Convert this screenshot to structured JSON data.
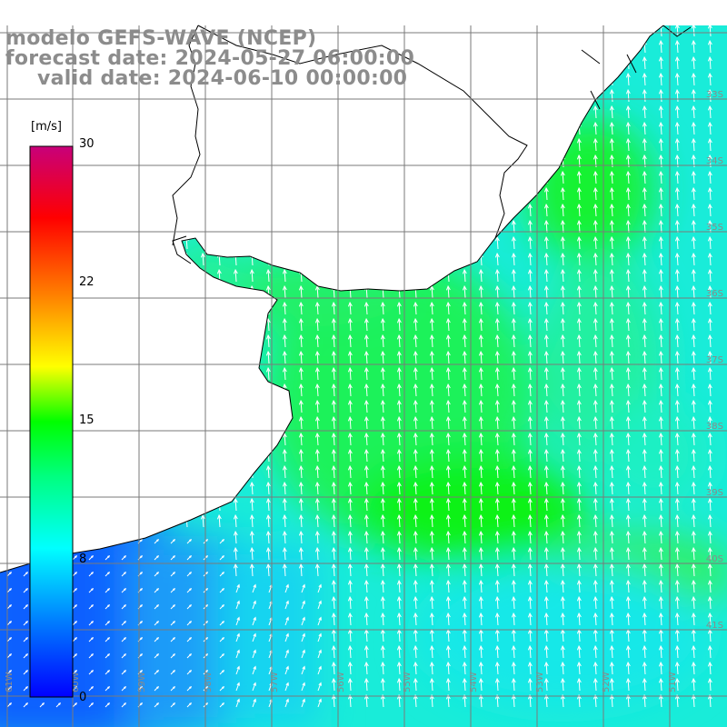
{
  "title": {
    "line1": "modelo GEFS-WAVE (NCEP)",
    "line2": "forecast date: 2024-05-27 06:00:00",
    "line3": "valid date: 2024-06-10 00:00:00"
  },
  "colorbar": {
    "unit": "[m/s]",
    "ticks": [
      "30",
      "22",
      "15",
      "8",
      "0"
    ],
    "tick_values": [
      30,
      22,
      15,
      8,
      0
    ],
    "range": [
      0,
      30
    ],
    "colors": [
      "#0000ff",
      "#0080ff",
      "#00ffff",
      "#00ff00",
      "#ffff00",
      "#ff8000",
      "#ff0000",
      "#c8007a"
    ]
  },
  "map": {
    "variable": "wind speed",
    "units": "m/s",
    "lat_labels": [
      "33S",
      "34S",
      "35S",
      "36S",
      "37S",
      "38S",
      "39S",
      "40S",
      "41S"
    ],
    "lon_labels": [
      "61W",
      "60W",
      "59W",
      "58W",
      "57W",
      "56W",
      "55W",
      "54W",
      "53W",
      "52W",
      "51W"
    ],
    "wind_direction": "from south-southwest (arrows pointing north)",
    "land_color": "#ffffff",
    "grid_color": "#7a7a7a",
    "coastline_color": "#000000",
    "arrow_color": "#ffffff"
  }
}
